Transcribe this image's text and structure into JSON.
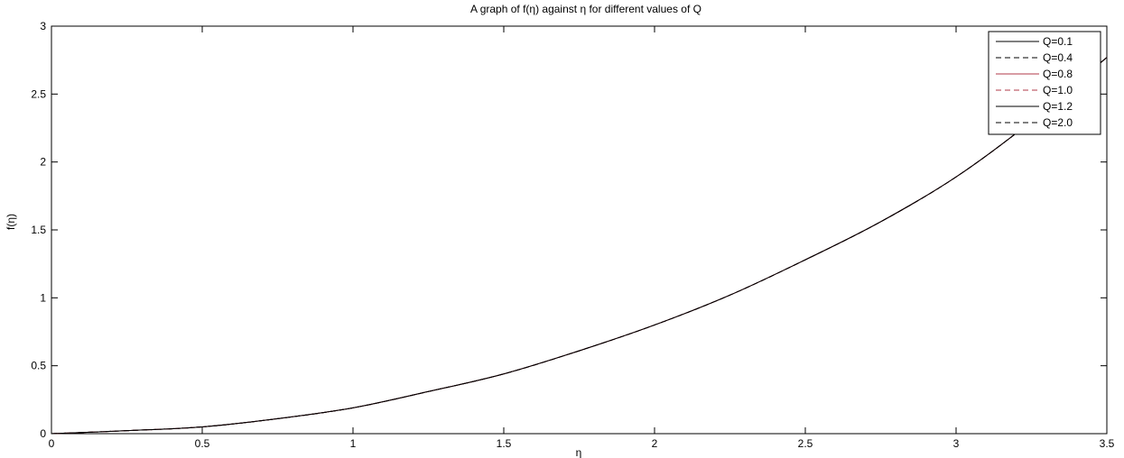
{
  "chart_data": {
    "type": "line",
    "title": "A graph of f(η) against η for different values of Q",
    "xlabel": "η",
    "ylabel": "f(η)",
    "xlim": [
      0,
      3.5
    ],
    "ylim": [
      0,
      3
    ],
    "x_ticks": [
      0,
      0.5,
      1,
      1.5,
      2,
      2.5,
      3,
      3.5
    ],
    "x_tick_labels": [
      "0",
      "0.5",
      "1",
      "1.5",
      "2",
      "2.5",
      "3",
      "3.5"
    ],
    "y_ticks": [
      0,
      0.5,
      1,
      1.5,
      2,
      2.5,
      3
    ],
    "y_tick_labels": [
      "0",
      "0.5",
      "1",
      "1.5",
      "2",
      "2.5",
      "3"
    ],
    "grid": false,
    "legend_position": "top-right",
    "x": [
      0,
      0.25,
      0.5,
      0.75,
      1,
      1.25,
      1.5,
      1.75,
      2,
      2.25,
      2.5,
      2.75,
      3,
      3.25,
      3.5
    ],
    "series": [
      {
        "name": "Q=0.1",
        "color": "#000000",
        "dash": "solid",
        "values": [
          0,
          0.022,
          0.05,
          0.11,
          0.19,
          0.31,
          0.44,
          0.61,
          0.8,
          1.02,
          1.28,
          1.56,
          1.89,
          2.3,
          2.77
        ]
      },
      {
        "name": "Q=0.4",
        "color": "#000000",
        "dash": "dashed",
        "values": [
          0,
          0.022,
          0.05,
          0.11,
          0.19,
          0.31,
          0.44,
          0.61,
          0.8,
          1.02,
          1.28,
          1.56,
          1.89,
          2.3,
          2.77
        ]
      },
      {
        "name": "Q=0.8",
        "color": "#b03a4a",
        "dash": "solid",
        "values": [
          0,
          0.022,
          0.05,
          0.11,
          0.19,
          0.31,
          0.44,
          0.61,
          0.8,
          1.02,
          1.28,
          1.56,
          1.89,
          2.3,
          2.77
        ]
      },
      {
        "name": "Q=1.0",
        "color": "#b03a4a",
        "dash": "dashed",
        "values": [
          0,
          0.022,
          0.05,
          0.11,
          0.19,
          0.31,
          0.44,
          0.61,
          0.8,
          1.02,
          1.28,
          1.56,
          1.89,
          2.3,
          2.77
        ]
      },
      {
        "name": "Q=1.2",
        "color": "#000000",
        "dash": "solid",
        "values": [
          0,
          0.022,
          0.05,
          0.11,
          0.19,
          0.31,
          0.44,
          0.61,
          0.8,
          1.02,
          1.28,
          1.56,
          1.89,
          2.3,
          2.77
        ]
      },
      {
        "name": "Q=2.0",
        "color": "#000000",
        "dash": "dashed",
        "values": [
          0,
          0.022,
          0.05,
          0.11,
          0.19,
          0.31,
          0.44,
          0.61,
          0.8,
          1.02,
          1.28,
          1.56,
          1.89,
          2.3,
          2.77
        ]
      }
    ]
  }
}
